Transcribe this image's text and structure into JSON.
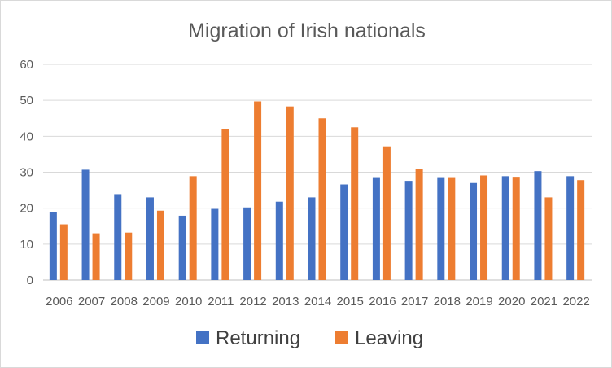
{
  "chart_data": {
    "type": "bar",
    "title": "Migration of Irish nationals",
    "xlabel": "",
    "ylabel": "",
    "ylim": [
      0,
      60
    ],
    "yticks": [
      0,
      10,
      20,
      30,
      40,
      50,
      60
    ],
    "grid": true,
    "legend_position": "bottom",
    "categories": [
      "2006",
      "2007",
      "2008",
      "2009",
      "2010",
      "2011",
      "2012",
      "2013",
      "2014",
      "2015",
      "2016",
      "2017",
      "2018",
      "2019",
      "2020",
      "2021",
      "2022"
    ],
    "series": [
      {
        "name": "Returning",
        "color": "#4472c4",
        "values": [
          18.9,
          30.7,
          23.9,
          23.0,
          17.9,
          19.8,
          20.2,
          21.8,
          23.0,
          26.6,
          28.4,
          27.6,
          28.4,
          27.0,
          28.9,
          30.3,
          28.9
        ]
      },
      {
        "name": "Leaving",
        "color": "#ed7d31",
        "values": [
          15.5,
          13.0,
          13.2,
          19.3,
          28.9,
          42.0,
          49.7,
          48.3,
          45.0,
          42.5,
          37.2,
          30.9,
          28.4,
          29.1,
          28.5,
          23.0,
          27.8
        ]
      }
    ]
  }
}
